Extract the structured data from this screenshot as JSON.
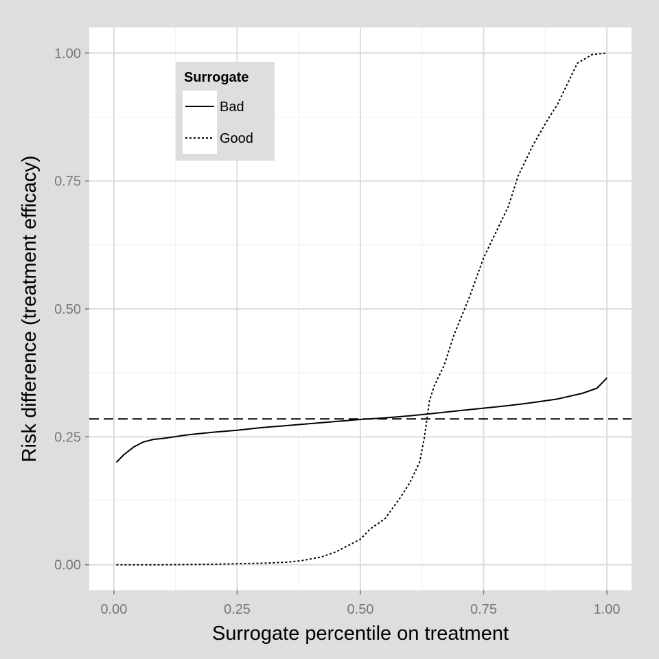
{
  "chart_data": {
    "type": "line",
    "xlabel": "Surrogate percentile on treatment",
    "ylabel": "Risk difference (treatment efficacy)",
    "xlim": [
      -0.05,
      1.05
    ],
    "ylim": [
      -0.05,
      1.05
    ],
    "x_ticks": [
      0,
      0.25,
      0.5,
      0.75,
      1.0
    ],
    "x_tick_labels": [
      "0.00",
      "0.25",
      "0.50",
      "0.75",
      "1.00"
    ],
    "y_ticks": [
      0,
      0.25,
      0.5,
      0.75,
      1.0
    ],
    "y_tick_labels": [
      "0.00",
      "0.25",
      "0.50",
      "0.75",
      "1.00"
    ],
    "grid": true,
    "legend": {
      "title": "Surrogate",
      "position": "top-left",
      "entries": [
        {
          "label": "Bad",
          "style": "solid"
        },
        {
          "label": "Good",
          "style": "dotted"
        }
      ]
    },
    "reference_line": {
      "y": 0.285,
      "style": "dashed"
    },
    "series": [
      {
        "name": "Bad",
        "style": "solid",
        "x": [
          0.005,
          0.02,
          0.04,
          0.06,
          0.08,
          0.1,
          0.15,
          0.2,
          0.25,
          0.3,
          0.35,
          0.4,
          0.45,
          0.5,
          0.55,
          0.6,
          0.65,
          0.7,
          0.75,
          0.8,
          0.85,
          0.9,
          0.95,
          0.98,
          1.0
        ],
        "y": [
          0.2,
          0.215,
          0.23,
          0.24,
          0.245,
          0.247,
          0.254,
          0.259,
          0.263,
          0.268,
          0.272,
          0.276,
          0.28,
          0.284,
          0.287,
          0.291,
          0.296,
          0.301,
          0.306,
          0.311,
          0.317,
          0.324,
          0.335,
          0.345,
          0.365
        ]
      },
      {
        "name": "Good",
        "style": "dotted",
        "x": [
          0.005,
          0.1,
          0.2,
          0.25,
          0.3,
          0.35,
          0.38,
          0.42,
          0.45,
          0.48,
          0.5,
          0.52,
          0.55,
          0.58,
          0.6,
          0.62,
          0.63,
          0.64,
          0.65,
          0.67,
          0.69,
          0.72,
          0.75,
          0.78,
          0.8,
          0.82,
          0.85,
          0.88,
          0.9,
          0.92,
          0.94,
          0.97,
          1.0
        ],
        "y": [
          0.0,
          0.0,
          0.001,
          0.002,
          0.003,
          0.005,
          0.008,
          0.015,
          0.025,
          0.04,
          0.05,
          0.07,
          0.09,
          0.13,
          0.16,
          0.2,
          0.25,
          0.32,
          0.35,
          0.39,
          0.45,
          0.52,
          0.6,
          0.66,
          0.7,
          0.76,
          0.82,
          0.87,
          0.9,
          0.94,
          0.98,
          0.997,
          1.0
        ]
      }
    ]
  },
  "colors": {
    "background": "#dedede",
    "panel": "#ffffff",
    "grid_major": "#dcdcdc",
    "grid_minor": "#efefef",
    "line": "#000000",
    "legend_background": "#dedede",
    "tick_text": "#777777"
  }
}
